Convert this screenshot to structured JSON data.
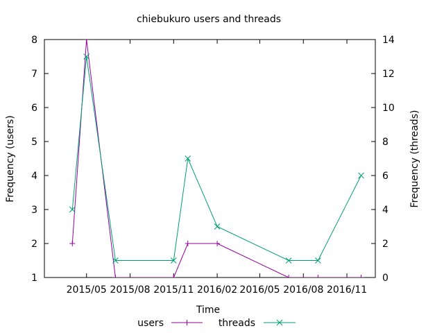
{
  "chart_data": {
    "type": "line",
    "title": "chiebukuro users and threads",
    "xlabel": "Time",
    "ylabel": "Frequency (users)",
    "y2label": "Frequency (threads)",
    "xlim": [
      "2015-02-01",
      "2016-12-31"
    ],
    "ylim": [
      1,
      8
    ],
    "y2lim": [
      0,
      14
    ],
    "x_ticks": [
      "2015/05",
      "2015/08",
      "2015/11",
      "2016/02",
      "2016/05",
      "2016/08",
      "2016/11"
    ],
    "x_tick_dates": [
      "2015-05-01",
      "2015-08-01",
      "2015-11-01",
      "2016-02-01",
      "2016-05-01",
      "2016-08-01",
      "2016-11-01"
    ],
    "y_ticks": [
      1,
      2,
      3,
      4,
      5,
      6,
      7,
      8
    ],
    "y2_ticks": [
      0,
      2,
      4,
      6,
      8,
      10,
      12,
      14
    ],
    "legend_position": "bottom-center",
    "grid": false,
    "series": [
      {
        "name": "users",
        "axis": "left",
        "color": "#94009b",
        "marker": "plus",
        "x": [
          "2015-04-01",
          "2015-05-01",
          "2015-07-01",
          "2015-11-01",
          "2015-12-01",
          "2016-02-01",
          "2016-07-01",
          "2016-09-01",
          "2016-12-01"
        ],
        "values": [
          2,
          8,
          1,
          1,
          2,
          2,
          1,
          1,
          1
        ]
      },
      {
        "name": "threads",
        "axis": "right",
        "color": "#009e73",
        "marker": "x",
        "x": [
          "2015-04-01",
          "2015-05-01",
          "2015-07-01",
          "2015-11-01",
          "2015-12-01",
          "2016-02-01",
          "2016-07-01",
          "2016-09-01",
          "2016-12-01"
        ],
        "values": [
          4,
          13,
          1,
          1,
          7,
          3,
          1,
          1,
          6
        ]
      }
    ]
  }
}
